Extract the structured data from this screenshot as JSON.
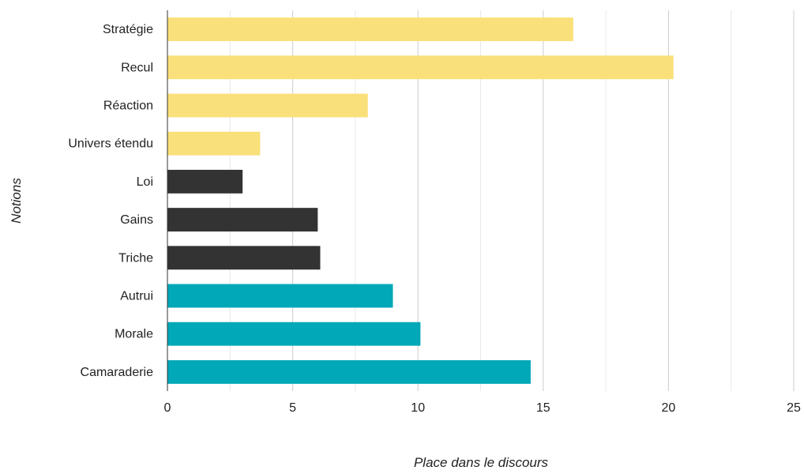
{
  "chart_data": {
    "type": "bar",
    "orientation": "horizontal",
    "title": "",
    "xlabel": "Place dans le discours",
    "ylabel": "Notions",
    "xlim": [
      0,
      25
    ],
    "xticks": [
      0,
      5,
      10,
      15,
      20,
      25
    ],
    "grid": true,
    "legend": "none",
    "categories": [
      "Stratégie",
      "Recul",
      "Réaction",
      "Univers étendu",
      "Loi",
      "Gains",
      "Triche",
      "Autrui",
      "Morale",
      "Camaraderie"
    ],
    "values": [
      16.2,
      20.2,
      8.0,
      3.7,
      3.0,
      6.0,
      6.1,
      9.0,
      10.1,
      14.5
    ],
    "colors": [
      "#f9e07a",
      "#f9e07a",
      "#f9e07a",
      "#f9e07a",
      "#333333",
      "#333333",
      "#333333",
      "#00a8b8",
      "#00a8b8",
      "#00a8b8"
    ]
  }
}
